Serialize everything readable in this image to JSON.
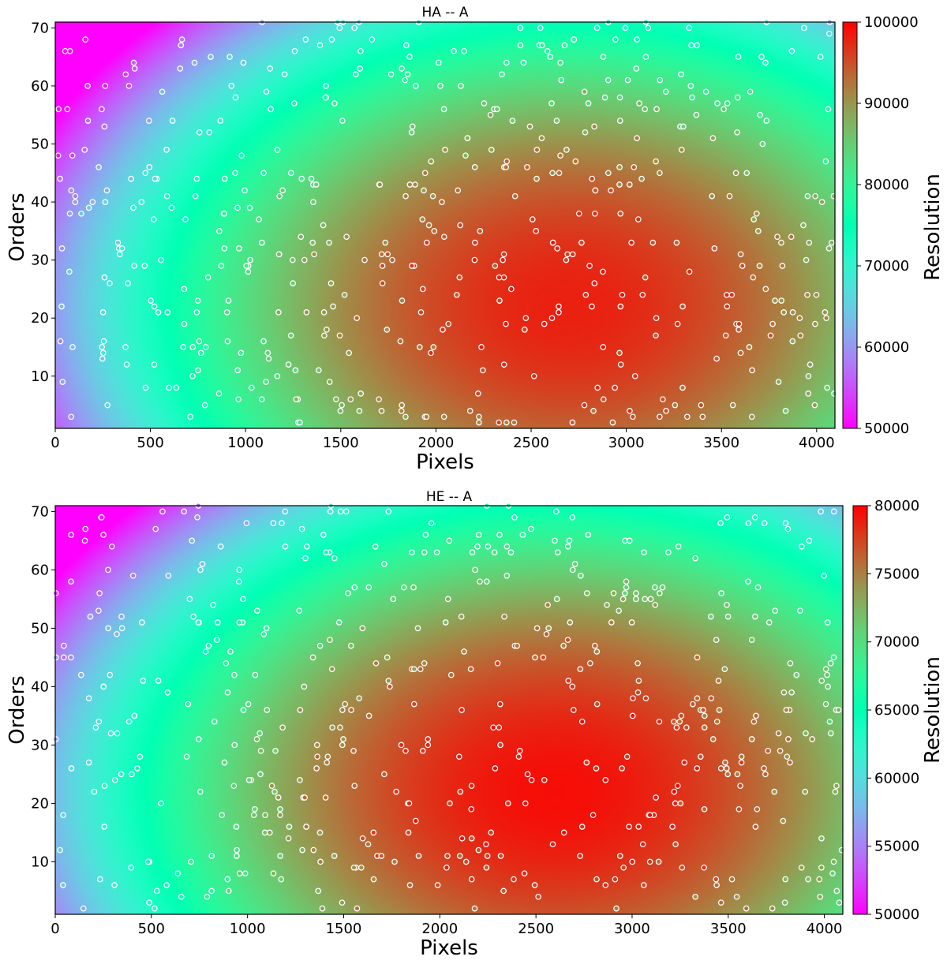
{
  "chart_data": [
    {
      "type": "heatmap",
      "title": "HA -- A",
      "xlabel": "Pixels",
      "ylabel": "Orders",
      "xlim": [
        0,
        4096
      ],
      "ylim": [
        1,
        71
      ],
      "xticks": [
        0,
        500,
        1000,
        1500,
        2000,
        2500,
        3000,
        3500,
        4000
      ],
      "yticks": [
        10,
        20,
        30,
        40,
        50,
        60,
        70
      ],
      "colormap": "rainbow",
      "colorbar": {
        "label": "Resolution",
        "range": [
          50000,
          100000
        ],
        "ticks": [
          50000,
          60000,
          70000,
          80000,
          90000,
          100000
        ]
      },
      "field": {
        "peak_value": 98000,
        "peak_x": 2700,
        "peak_y": 22,
        "corner_min_value": 50000,
        "corner_min_x": 0,
        "corner_min_y": 71
      },
      "scatter": "ring-marked calibration lines colored by measured resolution, spread across the detector",
      "grid": false
    },
    {
      "type": "heatmap",
      "title": "HE -- A",
      "xlabel": "Pixels",
      "ylabel": "Orders",
      "xlim": [
        0,
        4096
      ],
      "ylim": [
        1,
        71
      ],
      "xticks": [
        0,
        500,
        1000,
        1500,
        2000,
        2500,
        3000,
        3500,
        4000
      ],
      "yticks": [
        10,
        20,
        30,
        40,
        50,
        60,
        70
      ],
      "colormap": "rainbow",
      "colorbar": {
        "label": "Resolution",
        "range": [
          50000,
          80000
        ],
        "ticks": [
          50000,
          55000,
          60000,
          65000,
          70000,
          75000,
          80000
        ]
      },
      "field": {
        "peak_value": 79500,
        "peak_x": 2600,
        "peak_y": 22,
        "corner_min_value": 50000,
        "corner_min_x": 0,
        "corner_min_y": 71
      },
      "scatter": "ring-marked calibration lines colored by measured resolution, spread across the detector",
      "grid": false
    }
  ]
}
